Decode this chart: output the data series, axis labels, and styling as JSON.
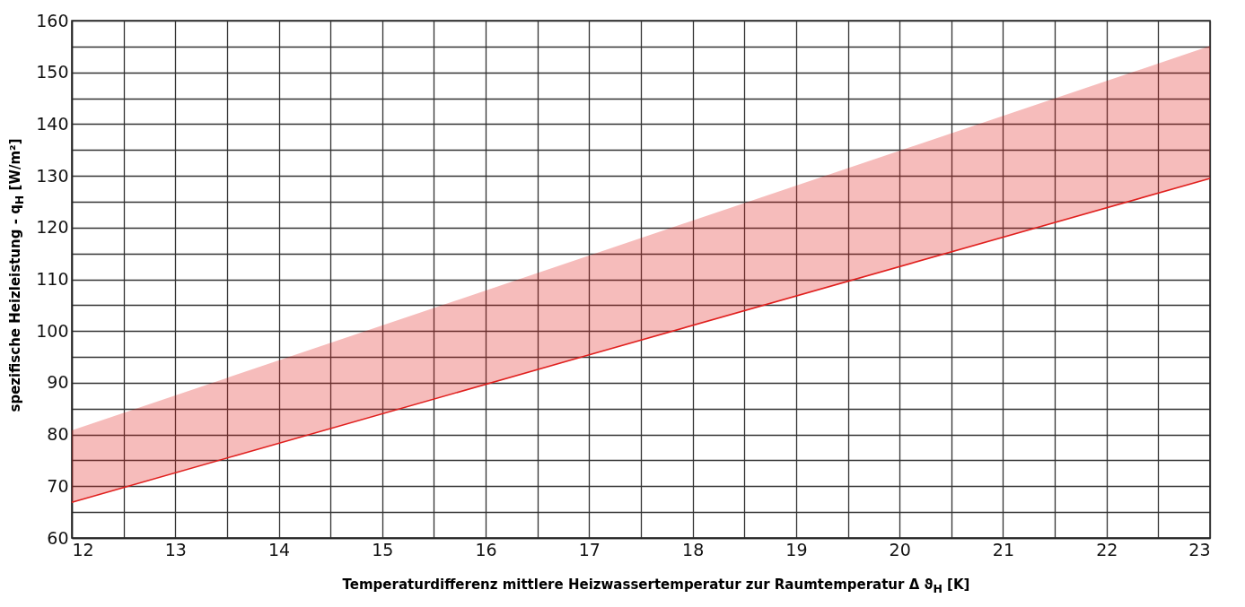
{
  "chart_data": {
    "type": "line",
    "xlabel": "Temperaturdifferenz mittlere Heizwassertemperatur zur Raumtemperatur Δ ϑ$_{H}$ [K]",
    "ylabel": "spezifische Heizleistung - q$_{H}$ [W/m²]",
    "x": [
      12,
      17,
      23
    ],
    "series": [
      {
        "color": "#e0201e",
        "values": [
          66.9,
          95.4,
          129.5
        ],
        "lower": [
          66.9,
          95.4,
          129.5
        ],
        "upper": [
          80.8,
          114.6,
          155.1
        ]
      }
    ],
    "xlim": [
      12,
      23
    ],
    "xticks": [
      12,
      {
        "value": 12.5,
        "label": null
      },
      13,
      {
        "value": 13.5,
        "label": null
      },
      14,
      {
        "value": 14.5,
        "label": null
      },
      15,
      {
        "value": 15.5,
        "label": null
      },
      16,
      {
        "value": 16.5,
        "label": null
      },
      17,
      {
        "value": 17.5,
        "label": null
      },
      18,
      {
        "value": 18.5,
        "label": null
      },
      19,
      {
        "value": 19.5,
        "label": null
      },
      20,
      {
        "value": 20.5,
        "label": null
      },
      21,
      {
        "value": 21.5,
        "label": null
      },
      22,
      {
        "value": 22.5,
        "label": null
      },
      23
    ],
    "ylim": [
      60,
      160
    ],
    "yticks": [
      60,
      {
        "value": 65,
        "label": null
      },
      70,
      {
        "value": 75,
        "label": null
      },
      80,
      {
        "value": 85,
        "label": null
      },
      90,
      {
        "value": 95,
        "label": null
      },
      100,
      {
        "value": 105,
        "label": null
      },
      110,
      {
        "value": 115,
        "label": null
      },
      120,
      {
        "value": 125,
        "label": null
      },
      130,
      {
        "value": 135,
        "label": null
      },
      140,
      {
        "value": 145,
        "label": null
      },
      150,
      {
        "value": 155,
        "label": null
      },
      160
    ],
    "grid": true,
    "line_style": "solid"
  }
}
